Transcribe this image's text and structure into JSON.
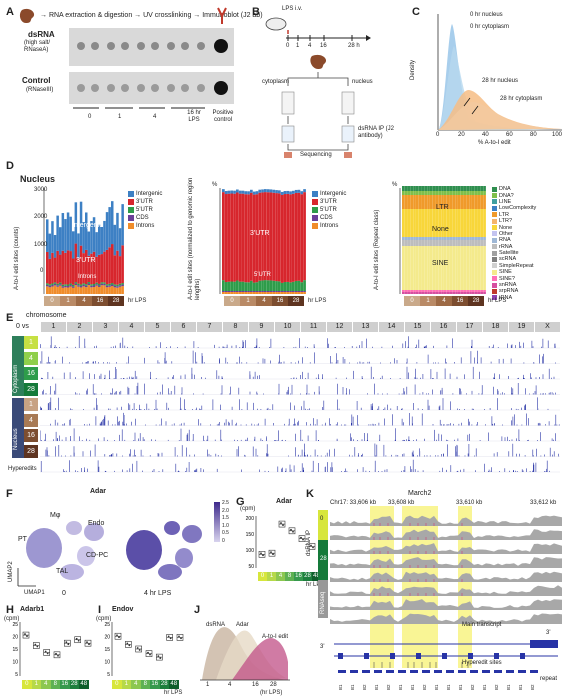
{
  "panels": {
    "A": {
      "letter": "A",
      "workflow": "→ RNA extraction & digestion → UV crosslinking → Immunoblot (J2 ab)",
      "row1_title": "dsRNA",
      "row1_sub": "(high salt/ RNaseA)",
      "row2_title": "Control",
      "row2_sub": "(RNaseIII)",
      "timepoints": [
        "0",
        "1",
        "4",
        "16 hr LPS"
      ],
      "positive_control": "Positive control"
    },
    "B": {
      "letter": "B",
      "top_label": "LPS i.v.",
      "axis_ticks": [
        "0",
        "1",
        "4",
        "16",
        "28 h"
      ],
      "cytoplasm": "cytoplasm",
      "nucleus": "nucleus",
      "ip_label": "dsRNA IP (J2 antibody)",
      "seq_label": "Sequencing"
    },
    "C": {
      "letter": "C",
      "ylabel": "Density",
      "xlabel": "% A-to-I edit",
      "xticks": [
        "0",
        "20",
        "40",
        "60",
        "80",
        "100"
      ],
      "series_labels": [
        "0 hr nucleus",
        "0 hr cytoplasm",
        "28 hr nucleus",
        "28 hr cytoplasm"
      ]
    },
    "D": {
      "letter": "D",
      "title": "Nucleus",
      "chart1_ylabel": "A-to-I edit sites (counts)",
      "chart2_ylabel": "A-to-I edit sites (normalized to genomic region lengths)",
      "chart3_ylabel": "A-to-I edit sites (Repeat class)",
      "hr_lps": "hr LPS",
      "legend1": [
        "Intergenic",
        "3'UTR",
        "5'UTR",
        "CDS",
        "Introns"
      ],
      "legend3": [
        "DNA",
        "DNA?",
        "LINE",
        "LowComplexity",
        "LTR",
        "LTR?",
        "None",
        "Other",
        "RNA",
        "rRNA",
        "Satellite",
        "scRNA",
        "SimpleRepeat",
        "SINE",
        "SINE?",
        "snRNA",
        "srpRNA",
        "tRNA"
      ],
      "chart1_inside": [
        "Intergenic",
        "3'UTR",
        "Introns"
      ],
      "chart2_inside": [
        "3'UTR",
        "5'UTR"
      ],
      "chart3_inside": [
        "LTR",
        "None",
        "SINE"
      ],
      "chart1_yticks": [
        "3000",
        "2000",
        "1000",
        "0"
      ],
      "chart2_ytick": "%",
      "chart3_ytick": "%",
      "time_labels": [
        "0",
        "1",
        "4",
        "16",
        "28"
      ]
    },
    "E": {
      "letter": "E",
      "chrom_label": "chromosome",
      "vs_label": "0 vs",
      "chromosomes": [
        "1",
        "2",
        "3",
        "4",
        "5",
        "6",
        "7",
        "8",
        "9",
        "10",
        "11",
        "12",
        "13",
        "14",
        "15",
        "16",
        "17",
        "18",
        "19",
        "X"
      ],
      "cytoplasm": "Cytoplasm",
      "nucleus": "Nucleus",
      "row_labels": [
        "1",
        "4",
        "16",
        "28",
        "1",
        "4",
        "16",
        "28"
      ],
      "hyperedits": "Hyperedits"
    },
    "F": {
      "letter": "F",
      "title": "Adar",
      "clusters": [
        "PT",
        "Mφ",
        "Endo",
        "CD-PC",
        "TAL"
      ],
      "umap1": "UMAP1",
      "umap2": "UMAP2",
      "scale": [
        "2.5",
        "2.0",
        "1.5",
        "1.0",
        "0.5",
        "0"
      ],
      "left_caption": "0",
      "right_caption": "4 hr LPS"
    },
    "G": {
      "letter": "G",
      "title": "Adar",
      "unit": "(cpm)",
      "yticks": [
        "200",
        "150",
        "100",
        "50"
      ],
      "times": [
        "0",
        "1",
        "4",
        "8",
        "16",
        "28",
        "48"
      ],
      "xcaption": "hr LPS"
    },
    "H": {
      "letter": "H",
      "title": "Adarb1",
      "unit": "(cpm)",
      "yticks": [
        "25",
        "20",
        "15",
        "10",
        "5"
      ],
      "times": [
        "0",
        "1",
        "4",
        "8",
        "16",
        "28",
        "48"
      ]
    },
    "I": {
      "letter": "I",
      "title": "Endov",
      "unit": "(cpm)",
      "yticks": [
        "25",
        "20",
        "15",
        "10",
        "5"
      ],
      "times": [
        "0",
        "1",
        "4",
        "8",
        "16",
        "28",
        "48"
      ],
      "xcaption": "hr LPS"
    },
    "J": {
      "letter": "J",
      "labels": [
        "dsRNA",
        "Adar",
        "A-to-I edit"
      ],
      "xticks": [
        "1",
        "4",
        "16",
        "28"
      ],
      "xcaption": "(hr LPS)"
    },
    "K": {
      "letter": "K",
      "title": "March2",
      "coords": [
        "Chr17: 33,606 kb",
        "33,608 kb",
        "33,610 kb",
        "33,612 kb"
      ],
      "group_labels": [
        "dsRNA IP",
        "RNAseq"
      ],
      "group_time": [
        "0",
        "28"
      ],
      "main_transcript": "Main transcript",
      "three_prime": "3'",
      "hyperedit_sites": "Hyperedit sites",
      "repeat": "repeat",
      "repeat_names": [
        "B1",
        "B1",
        "B2",
        "B1",
        "B2",
        "B1",
        "B1",
        "B2",
        "B1",
        "B1",
        "B1",
        "B2",
        "B1",
        "B2",
        "B1",
        "B1",
        "B2"
      ]
    }
  },
  "colors": {
    "intergenic": "#3d80c4",
    "utr3": "#d7262d",
    "utr5": "#2e9c4a",
    "cds": "#6b3f98",
    "introns": "#f08c2a",
    "cytoplasm_tag": "#2e7f5b",
    "nucleus_tag": "#3a4a78",
    "track_blue": "#2733a6",
    "highlight": "#f7f27a",
    "lime": "#c6e043",
    "green_dark": "#157a3a"
  }
}
